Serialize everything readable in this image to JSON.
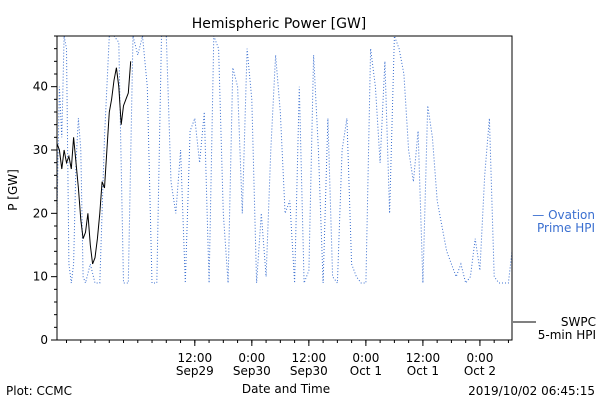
{
  "chart_data": {
    "type": "line",
    "title": "Hemispheric Power [GW]",
    "xlabel": "Date and Time",
    "ylabel": "P [GW]",
    "ylim": [
      0,
      48
    ],
    "yticks": [
      0,
      10,
      20,
      30,
      40
    ],
    "xlim": [
      "2019-09-28T07:00",
      "2019-10-02T06:45"
    ],
    "xticks": [
      {
        "t": "2019-09-29T12:00",
        "time": "12:00",
        "date": "Sep29"
      },
      {
        "t": "2019-09-30T00:00",
        "time": "0:00",
        "date": "Sep30"
      },
      {
        "t": "2019-09-30T12:00",
        "time": "12:00",
        "date": "Sep30"
      },
      {
        "t": "2019-10-01T00:00",
        "time": "0:00",
        "date": "Oct 1"
      },
      {
        "t": "2019-10-01T12:00",
        "time": "12:00",
        "date": "Oct 1"
      },
      {
        "t": "2019-10-02T00:00",
        "time": "0:00",
        "date": "Oct 2"
      }
    ],
    "series": [
      {
        "name": "Ovation Prime HPI",
        "legend": [
          "— Ovation",
          "Prime HPI"
        ],
        "color": "#3a6fd0",
        "style": "dotted",
        "points": [
          [
            "2019-09-28T07:00",
            20
          ],
          [
            "2019-09-28T07:30",
            40
          ],
          [
            "2019-09-28T08:00",
            32
          ],
          [
            "2019-09-28T08:30",
            48
          ],
          [
            "2019-09-28T09:00",
            46
          ],
          [
            "2019-09-28T09:30",
            12
          ],
          [
            "2019-09-28T10:00",
            9
          ],
          [
            "2019-09-28T10:30",
            12
          ],
          [
            "2019-09-28T11:00",
            28
          ],
          [
            "2019-09-28T11:30",
            35
          ],
          [
            "2019-09-28T12:00",
            30
          ],
          [
            "2019-09-28T12:30",
            10
          ],
          [
            "2019-09-28T13:00",
            9
          ],
          [
            "2019-09-28T14:00",
            12
          ],
          [
            "2019-09-28T15:00",
            9
          ],
          [
            "2019-09-28T16:00",
            9
          ],
          [
            "2019-09-28T17:00",
            32
          ],
          [
            "2019-09-28T18:00",
            48
          ],
          [
            "2019-09-28T19:00",
            48
          ],
          [
            "2019-09-28T20:00",
            47
          ],
          [
            "2019-09-28T21:00",
            9
          ],
          [
            "2019-09-28T22:00",
            9
          ],
          [
            "2019-09-28T23:00",
            48
          ],
          [
            "2019-09-29T00:00",
            45
          ],
          [
            "2019-09-29T01:00",
            48
          ],
          [
            "2019-09-29T02:00",
            40
          ],
          [
            "2019-09-29T03:00",
            9
          ],
          [
            "2019-09-29T04:00",
            9
          ],
          [
            "2019-09-29T05:00",
            48
          ],
          [
            "2019-09-29T06:00",
            48
          ],
          [
            "2019-09-29T07:00",
            25
          ],
          [
            "2019-09-29T08:00",
            20
          ],
          [
            "2019-09-29T09:00",
            30
          ],
          [
            "2019-09-29T10:00",
            9
          ],
          [
            "2019-09-29T11:00",
            33
          ],
          [
            "2019-09-29T12:00",
            35
          ],
          [
            "2019-09-29T13:00",
            28
          ],
          [
            "2019-09-29T14:00",
            36
          ],
          [
            "2019-09-29T15:00",
            9
          ],
          [
            "2019-09-29T16:00",
            48
          ],
          [
            "2019-09-29T17:00",
            46
          ],
          [
            "2019-09-29T18:00",
            20
          ],
          [
            "2019-09-29T19:00",
            9
          ],
          [
            "2019-09-29T20:00",
            43
          ],
          [
            "2019-09-29T21:00",
            40
          ],
          [
            "2019-09-29T22:00",
            20
          ],
          [
            "2019-09-29T23:00",
            46
          ],
          [
            "2019-09-30T00:00",
            38
          ],
          [
            "2019-09-30T01:00",
            9
          ],
          [
            "2019-09-30T02:00",
            20
          ],
          [
            "2019-09-30T03:00",
            10
          ],
          [
            "2019-09-30T04:00",
            30
          ],
          [
            "2019-09-30T05:00",
            45
          ],
          [
            "2019-09-30T06:00",
            36
          ],
          [
            "2019-09-30T07:00",
            20
          ],
          [
            "2019-09-30T08:00",
            22
          ],
          [
            "2019-09-30T09:00",
            9
          ],
          [
            "2019-09-30T10:00",
            40
          ],
          [
            "2019-09-30T11:00",
            9
          ],
          [
            "2019-09-30T12:00",
            11
          ],
          [
            "2019-09-30T13:00",
            45
          ],
          [
            "2019-09-30T14:00",
            30
          ],
          [
            "2019-09-30T15:00",
            9
          ],
          [
            "2019-09-30T16:00",
            35
          ],
          [
            "2019-09-30T17:00",
            10
          ],
          [
            "2019-09-30T18:00",
            9
          ],
          [
            "2019-09-30T19:00",
            30
          ],
          [
            "2019-09-30T20:00",
            35
          ],
          [
            "2019-09-30T21:00",
            12
          ],
          [
            "2019-09-30T22:00",
            10
          ],
          [
            "2019-09-30T23:00",
            9
          ],
          [
            "2019-10-01T00:00",
            9
          ],
          [
            "2019-10-01T01:00",
            46
          ],
          [
            "2019-10-01T02:00",
            40
          ],
          [
            "2019-10-01T03:00",
            28
          ],
          [
            "2019-10-01T04:00",
            44
          ],
          [
            "2019-10-01T05:00",
            20
          ],
          [
            "2019-10-01T06:00",
            48
          ],
          [
            "2019-10-01T07:00",
            46
          ],
          [
            "2019-10-01T08:00",
            42
          ],
          [
            "2019-10-01T09:00",
            30
          ],
          [
            "2019-10-01T10:00",
            25
          ],
          [
            "2019-10-01T11:00",
            33
          ],
          [
            "2019-10-01T12:00",
            9
          ],
          [
            "2019-10-01T13:00",
            37
          ],
          [
            "2019-10-01T14:00",
            32
          ],
          [
            "2019-10-01T15:00",
            22
          ],
          [
            "2019-10-01T16:00",
            18
          ],
          [
            "2019-10-01T17:00",
            14
          ],
          [
            "2019-10-01T18:00",
            12
          ],
          [
            "2019-10-01T19:00",
            10
          ],
          [
            "2019-10-01T20:00",
            12
          ],
          [
            "2019-10-01T21:00",
            9
          ],
          [
            "2019-10-01T22:00",
            10
          ],
          [
            "2019-10-01T23:00",
            16
          ],
          [
            "2019-10-02T00:00",
            11
          ],
          [
            "2019-10-02T01:00",
            26
          ],
          [
            "2019-10-02T02:00",
            35
          ],
          [
            "2019-10-02T03:00",
            10
          ],
          [
            "2019-10-02T04:00",
            9
          ],
          [
            "2019-10-02T05:00",
            9
          ],
          [
            "2019-10-02T06:00",
            9
          ],
          [
            "2019-10-02T06:45",
            14
          ]
        ]
      },
      {
        "name": "SWPC 5-min HPI",
        "legend": [
          "SWPC",
          "5-min HPI"
        ],
        "color": "#000000",
        "style": "solid",
        "points": [
          [
            "2019-09-28T07:00",
            31
          ],
          [
            "2019-09-28T07:30",
            30
          ],
          [
            "2019-09-28T08:00",
            27
          ],
          [
            "2019-09-28T08:30",
            30
          ],
          [
            "2019-09-28T09:00",
            28
          ],
          [
            "2019-09-28T09:30",
            29
          ],
          [
            "2019-09-28T10:00",
            27
          ],
          [
            "2019-09-28T10:30",
            32
          ],
          [
            "2019-09-28T11:00",
            28
          ],
          [
            "2019-09-28T11:30",
            24
          ],
          [
            "2019-09-28T12:00",
            19
          ],
          [
            "2019-09-28T12:30",
            16
          ],
          [
            "2019-09-28T13:00",
            17
          ],
          [
            "2019-09-28T13:30",
            20
          ],
          [
            "2019-09-28T14:00",
            15
          ],
          [
            "2019-09-28T14:30",
            12
          ],
          [
            "2019-09-28T15:00",
            13
          ],
          [
            "2019-09-28T15:30",
            16
          ],
          [
            "2019-09-28T16:00",
            20
          ],
          [
            "2019-09-28T16:30",
            25
          ],
          [
            "2019-09-28T17:00",
            24
          ],
          [
            "2019-09-28T17:30",
            30
          ],
          [
            "2019-09-28T18:00",
            36
          ],
          [
            "2019-09-28T18:30",
            38
          ],
          [
            "2019-09-28T19:00",
            41
          ],
          [
            "2019-09-28T19:30",
            43
          ],
          [
            "2019-09-28T20:00",
            40
          ],
          [
            "2019-09-28T20:30",
            34
          ],
          [
            "2019-09-28T21:00",
            37
          ],
          [
            "2019-09-28T21:30",
            38
          ],
          [
            "2019-09-28T22:00",
            39
          ],
          [
            "2019-09-28T22:30",
            44
          ]
        ]
      }
    ]
  },
  "footer": {
    "left": "Plot: CCMC",
    "right": "2019/10/02 06:45:15"
  }
}
